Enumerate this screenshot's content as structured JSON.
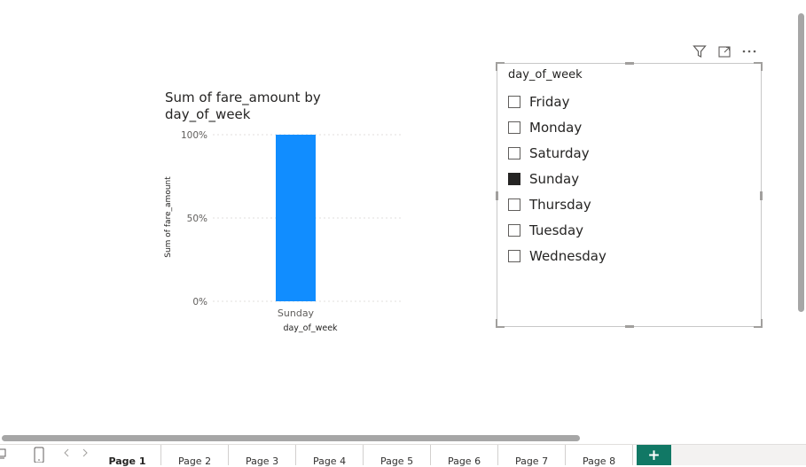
{
  "chart_data": {
    "type": "bar",
    "title": "Sum of fare_amount by day_of_week",
    "xlabel": "day_of_week",
    "ylabel": "Sum of fare_amount",
    "categories": [
      "Sunday"
    ],
    "values": [
      100
    ],
    "yticks": [
      "100%",
      "50%",
      "0%"
    ],
    "ylim": [
      0,
      100
    ],
    "grid": true,
    "bar_color": "#118DFF"
  },
  "slicer": {
    "header": "day_of_week",
    "items": [
      {
        "label": "Friday",
        "checked": false
      },
      {
        "label": "Monday",
        "checked": false
      },
      {
        "label": "Saturday",
        "checked": false
      },
      {
        "label": "Sunday",
        "checked": true
      },
      {
        "label": "Thursday",
        "checked": false
      },
      {
        "label": "Tuesday",
        "checked": false
      },
      {
        "label": "Wednesday",
        "checked": false
      }
    ]
  },
  "visual_header": {
    "icons": [
      "filter-icon",
      "focus-mode-icon",
      "more-options-icon"
    ]
  },
  "pages": {
    "tabs": [
      "Page 1",
      "Page 2",
      "Page 3",
      "Page 4",
      "Page 5",
      "Page 6",
      "Page 7",
      "Page 8"
    ],
    "active_index": 0,
    "add_label": "+",
    "accent": "#117865"
  }
}
